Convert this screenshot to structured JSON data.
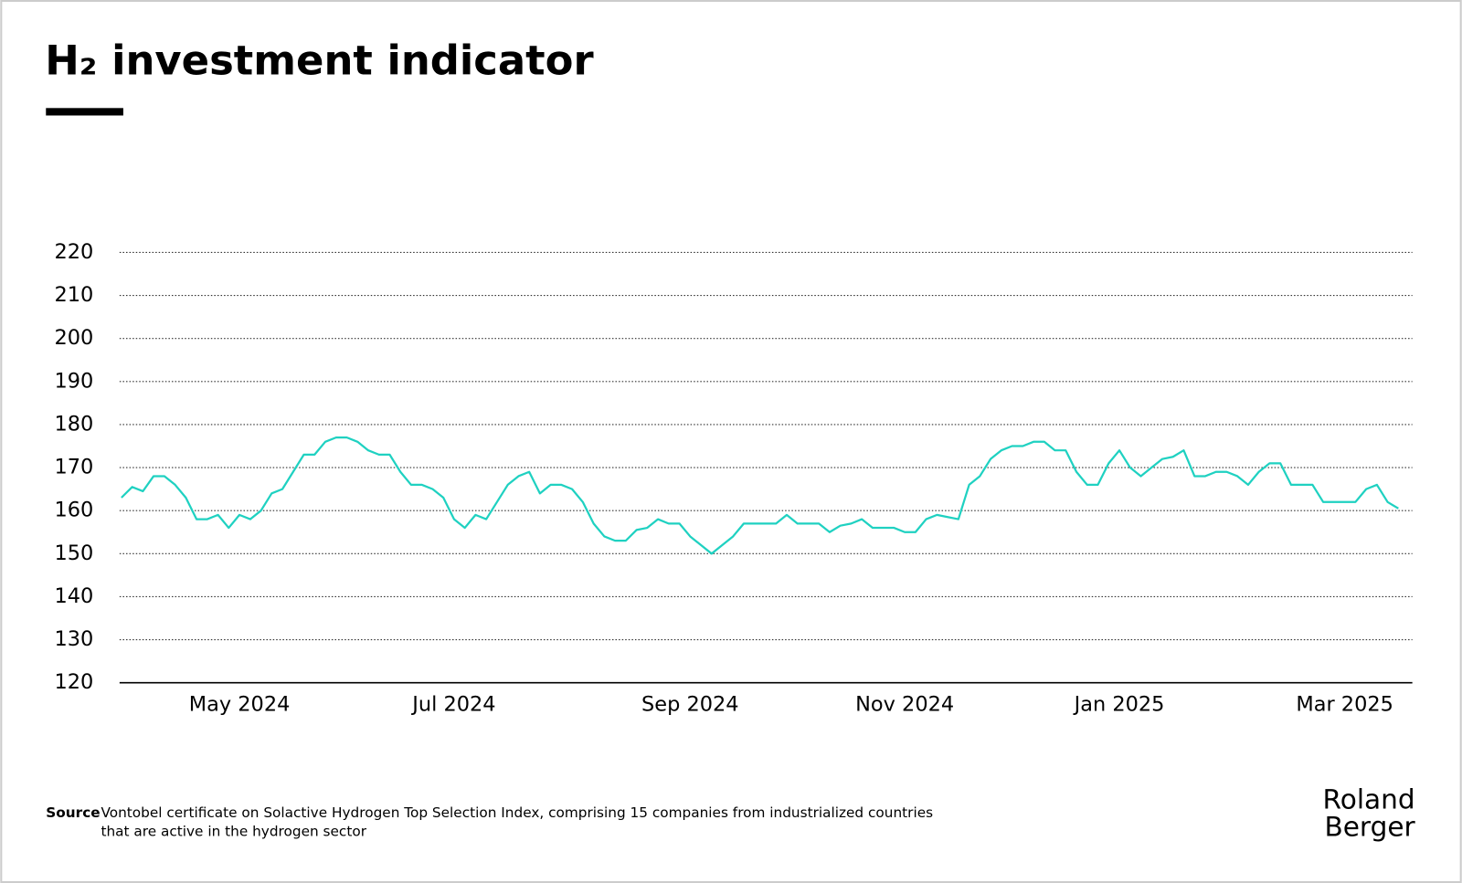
{
  "chart_data": {
    "type": "line",
    "title": "H₂ investment indicator",
    "source_label": "Source",
    "source_lines": [
      "Vontobel certificate on Solactive Hydrogen Top Selection Index, comprising 15 companies from industrialized countries",
      "that are active in the hydrogen sector"
    ],
    "logo_lines": [
      "Roland",
      "Berger"
    ],
    "categories": [
      null,
      null,
      null,
      null,
      null,
      null,
      null,
      null,
      null,
      null,
      null,
      "May 2024",
      null,
      null,
      null,
      null,
      null,
      null,
      null,
      null,
      null,
      null,
      null,
      null,
      null,
      null,
      null,
      null,
      null,
      null,
      null,
      "Jul 2024",
      null,
      null,
      null,
      null,
      null,
      null,
      null,
      null,
      null,
      null,
      null,
      null,
      null,
      null,
      null,
      null,
      null,
      null,
      null,
      null,
      null,
      "Sep 2024",
      null,
      null,
      null,
      null,
      null,
      null,
      null,
      null,
      null,
      null,
      null,
      null,
      null,
      null,
      null,
      null,
      null,
      null,
      null,
      "Nov 2024",
      null,
      null,
      null,
      null,
      null,
      null,
      null,
      null,
      null,
      null,
      null,
      null,
      null,
      null,
      null,
      null,
      null,
      null,
      null,
      "Jan 2025",
      null,
      null,
      null,
      null,
      null,
      null,
      null,
      null,
      null,
      null,
      null,
      null,
      null,
      null,
      null,
      null,
      null,
      null,
      null,
      null,
      "Mar 2025",
      null,
      null,
      null,
      null,
      null
    ],
    "series": [
      {
        "name": "H2 investment indicator",
        "color": "#1fd1c1",
        "values": [
          163,
          165.5,
          164.5,
          168,
          168,
          166,
          163,
          158,
          158,
          159,
          156,
          159,
          158,
          160,
          164,
          165,
          169,
          173,
          173,
          176,
          177,
          177,
          176,
          174,
          173,
          173,
          169,
          166,
          166,
          165,
          163,
          158,
          156,
          159,
          158,
          162,
          166,
          168,
          169,
          164,
          166,
          166,
          165,
          162,
          157,
          154,
          153,
          153,
          155.5,
          156,
          158,
          157,
          157,
          154,
          152,
          150,
          152,
          154,
          157,
          157,
          157,
          157,
          159,
          157,
          157,
          157,
          155,
          156.5,
          157,
          158,
          156,
          156,
          156,
          155,
          155,
          158,
          159,
          158.5,
          158,
          166,
          168,
          172,
          174,
          175,
          175,
          176,
          176,
          174,
          174,
          169,
          166,
          166,
          171,
          174,
          170,
          168,
          170,
          172,
          172.5,
          174,
          168,
          168,
          169,
          169,
          168,
          166,
          169,
          171,
          171,
          166,
          166,
          166,
          162,
          162,
          162,
          162,
          165,
          166,
          162,
          160.5
        ]
      }
    ],
    "ylim": [
      120,
      220
    ],
    "yticks": [
      120,
      130,
      140,
      150,
      160,
      170,
      180,
      190,
      200,
      210,
      220
    ],
    "grid": true
  }
}
